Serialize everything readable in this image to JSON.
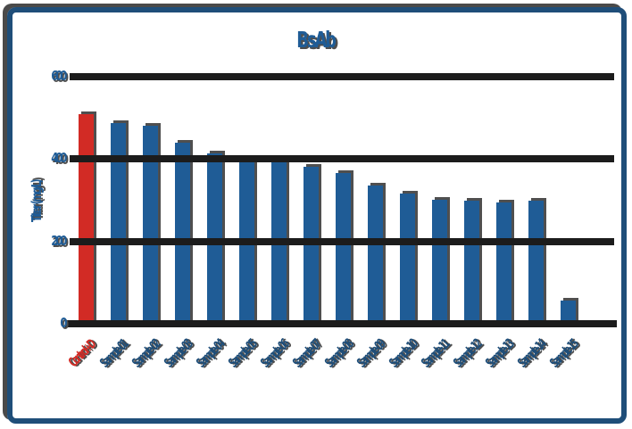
{
  "frame": {
    "border_color": "#1F4E79",
    "shadow_color": "#4A4A4A",
    "background": "#FFFFFF"
  },
  "chart_data": {
    "type": "bar",
    "title": "BsAb",
    "xlabel": "",
    "ylabel": "Titer (mg/L)",
    "ylim": [
      0,
      600
    ],
    "yticks": [
      0,
      200,
      400,
      600
    ],
    "grid": "horizontal-heavy",
    "legend_position": "none",
    "x_tick_rotation_deg": 45,
    "categories": [
      "Control+D",
      "Sample-01",
      "Sample-02",
      "Sample-03",
      "Sample-04",
      "Sample-05",
      "Sample-06",
      "Sample-07",
      "Sample-08",
      "Sample-09",
      "Sample-10",
      "Sample-11",
      "Sample-12",
      "Sample-13",
      "Sample-14",
      "Sample-15"
    ],
    "values": [
      510,
      487,
      481,
      440,
      414,
      397,
      397,
      381,
      366,
      336,
      316,
      301,
      299,
      295,
      299,
      56
    ],
    "highlight_index": 0,
    "highlight_color": "#D22B25",
    "bar_color": "#1F5C96",
    "bar_shadow_color": "#4F4F4F",
    "gridline_color": "#1C1C1C",
    "tick_label_color": "#1F5C96",
    "x_label_color": "#1F4E79",
    "x_label_highlight_color": "#D22B25",
    "text_shadow_color": "#4E4E4E"
  }
}
